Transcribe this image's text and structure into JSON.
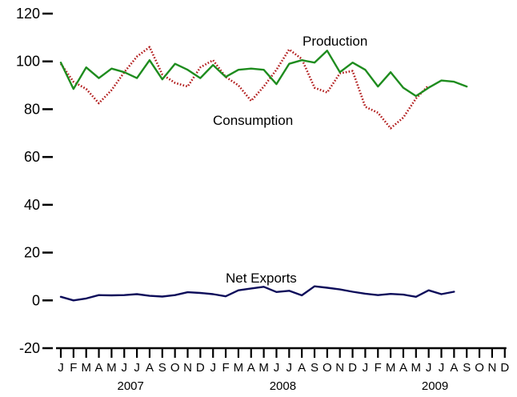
{
  "chart_data": {
    "type": "line",
    "ylim": [
      -20,
      120
    ],
    "yticks": [
      "-20",
      "0",
      "20",
      "40",
      "60",
      "80",
      "100",
      "120"
    ],
    "x_month_labels": [
      "J",
      "F",
      "M",
      "A",
      "M",
      "J",
      "J",
      "A",
      "S",
      "O",
      "N",
      "D",
      "J",
      "F",
      "M",
      "A",
      "M",
      "J",
      "J",
      "A",
      "S",
      "O",
      "N",
      "D",
      "J",
      "F",
      "M",
      "A",
      "M",
      "J",
      "J",
      "A",
      "S",
      "O",
      "N",
      "D"
    ],
    "x_year_labels": [
      "2007",
      "2008",
      "2009"
    ],
    "series": [
      {
        "name": "Production",
        "color": "#1e8c1e",
        "style": "solid",
        "values": [
          99.5,
          88.5,
          97.5,
          93,
          97,
          95.5,
          93,
          100.5,
          92.5,
          99,
          96.5,
          93,
          98.5,
          93.5,
          96.5,
          97,
          96.5,
          90.5,
          99,
          100.5,
          99.5,
          104.5,
          95.5,
          99.5,
          96.5,
          89.5,
          95.5,
          89,
          85.5,
          89,
          92,
          91.5,
          89.5
        ]
      },
      {
        "name": "Consumption",
        "color": "#b01818",
        "style": "dotted",
        "values": [
          99,
          91.5,
          88.5,
          82.5,
          88,
          95.5,
          102,
          106,
          94.5,
          91,
          89.5,
          97.5,
          100.5,
          93.5,
          90,
          83.5,
          89.5,
          96.5,
          105,
          101,
          89,
          87,
          95,
          96,
          81,
          78.5,
          72,
          76.5,
          84.5,
          90
        ]
      },
      {
        "name": "Net Exports",
        "color": "#0c0c5a",
        "style": "solid",
        "values": [
          1.5,
          0,
          0.8,
          2.2,
          2.1,
          2.2,
          2.6,
          1.9,
          1.6,
          2.2,
          3.4,
          3.1,
          2.6,
          1.7,
          4.2,
          5,
          5.7,
          3.5,
          4,
          2.1,
          5.9,
          5.3,
          4.6,
          3.6,
          2.8,
          2.2,
          2.7,
          2.4,
          1.5,
          4.2,
          2.6,
          3.6
        ]
      }
    ],
    "annotations": [
      {
        "text": "Production",
        "series": "Production"
      },
      {
        "text": "Consumption",
        "series": "Consumption"
      },
      {
        "text": "Net Exports",
        "series": "Net Exports"
      }
    ]
  }
}
